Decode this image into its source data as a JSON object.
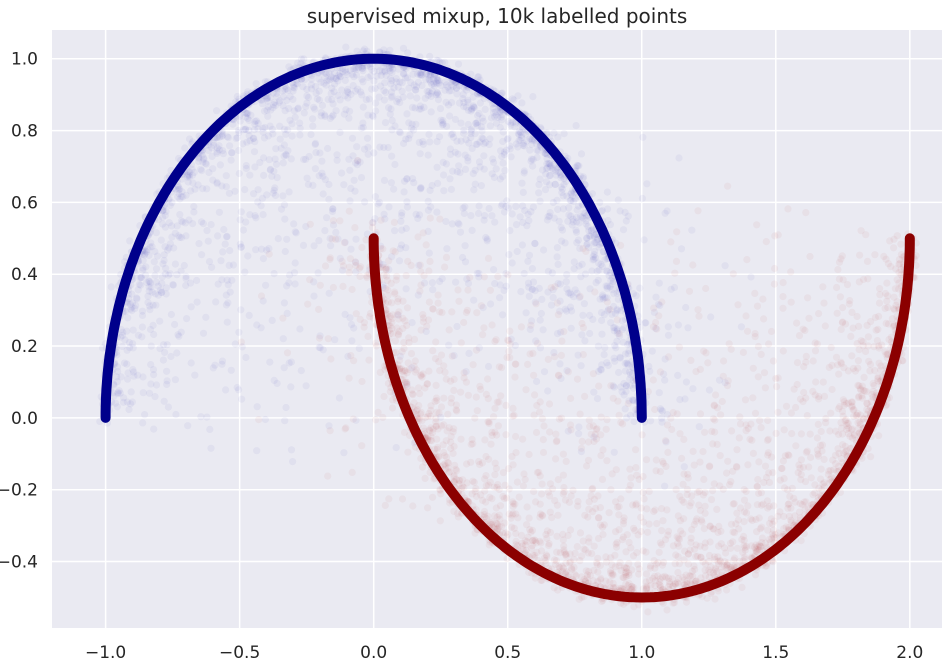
{
  "chart_data": {
    "type": "scatter",
    "title": "supervised mixup, 10k labelled points",
    "xlabel": "",
    "ylabel": "",
    "xlim": [
      -1.2,
      2.12
    ],
    "ylim": [
      -0.585,
      1.08
    ],
    "xticks": [
      -1.0,
      -0.5,
      0.0,
      0.5,
      1.0,
      1.5,
      2.0
    ],
    "xtick_labels": [
      "−1.0",
      "−0.5",
      "0.0",
      "0.5",
      "1.0",
      "1.5",
      "2.0"
    ],
    "yticks": [
      -0.4,
      -0.2,
      0.0,
      0.2,
      0.4,
      0.6,
      0.8,
      1.0
    ],
    "ytick_labels": [
      "−0.4",
      "−0.2",
      "0.0",
      "0.2",
      "0.4",
      "0.6",
      "0.8",
      "1.0"
    ],
    "grid": true,
    "legend": "none",
    "style": {
      "background": "#eaeaf2",
      "grid_color": "#ffffff",
      "class0_color": "#00008b",
      "class1_color": "#8b0000"
    },
    "series": [
      {
        "class": 0,
        "kind": "labelled-moon",
        "color": "#00008b",
        "curve": "upper half circle, center (0, 0), radius 1",
        "x": [
          -1.0,
          -0.866,
          -0.5,
          0.0,
          0.5,
          0.866,
          1.0
        ],
        "y": [
          0.0,
          0.5,
          0.866,
          1.0,
          0.866,
          0.5,
          0.0
        ]
      },
      {
        "class": 1,
        "kind": "labelled-moon",
        "color": "#8b0000",
        "curve": "lower half circle, center (1, 0.5), radius 1",
        "x": [
          0.0,
          0.134,
          0.5,
          1.0,
          1.5,
          1.866,
          2.0
        ],
        "y": [
          0.5,
          0.0,
          -0.366,
          -0.5,
          -0.366,
          0.0,
          0.5
        ]
      },
      {
        "class": 0,
        "kind": "mixup-samples",
        "color": "#3c3cbe",
        "opacity": 0.06
      },
      {
        "class": 1,
        "kind": "mixup-samples",
        "color": "#b43c3c",
        "opacity": 0.06
      }
    ]
  }
}
